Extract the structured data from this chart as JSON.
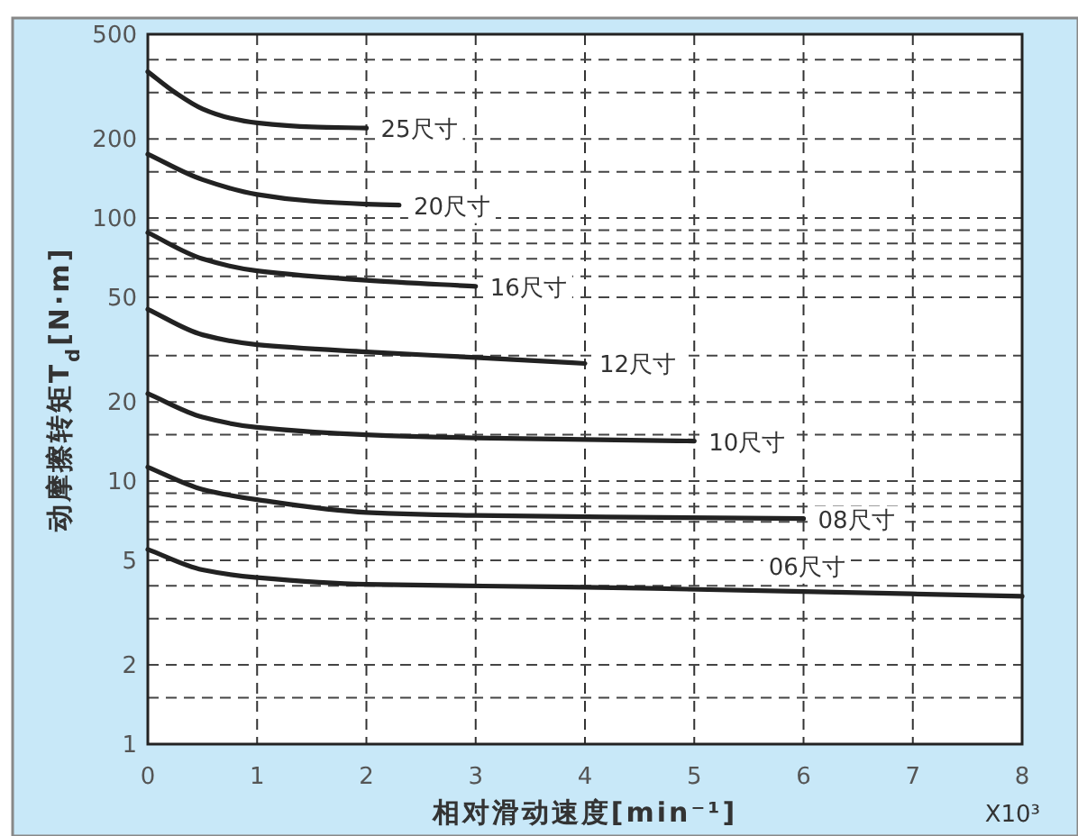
{
  "chart_data": {
    "type": "line",
    "xlabel": "相对滑动速度[min⁻¹]",
    "ylabel": "动摩擦转矩T$_{d}$[N·m]",
    "log": "y",
    "xlim": [
      0,
      8
    ],
    "xticks": [
      0,
      1,
      2,
      3,
      4,
      5,
      6,
      7,
      8
    ],
    "ylim": [
      1,
      500
    ],
    "yticks": [
      1,
      {
        "value": 1.5,
        "label": null
      },
      2,
      {
        "value": 3,
        "label": null
      },
      {
        "value": 4,
        "label": null
      },
      5,
      {
        "value": 6,
        "label": null
      },
      {
        "value": 7,
        "label": null
      },
      {
        "value": 8,
        "label": null
      },
      {
        "value": 9,
        "label": null
      },
      10,
      {
        "value": 15,
        "label": null
      },
      20,
      {
        "value": 30,
        "label": null
      },
      50,
      {
        "value": 60,
        "label": null
      },
      {
        "value": 70,
        "label": null
      },
      {
        "value": 80,
        "label": null
      },
      {
        "value": 90,
        "label": null
      },
      100,
      {
        "value": 150,
        "label": null
      },
      200,
      {
        "value": 300,
        "label": null
      },
      {
        "value": 400,
        "label": null
      },
      500
    ],
    "grid": true,
    "series": [
      {
        "name": "25尺寸",
        "color": "#222222",
        "x": [
          0,
          0.25,
          0.5,
          0.75,
          1,
          1.5,
          2
        ],
        "values": [
          360,
          300,
          260,
          240,
          230,
          222,
          220
        ]
      },
      {
        "name": "20尺寸",
        "color": "#222222",
        "x": [
          0,
          0.5,
          1,
          1.5,
          2,
          2.3
        ],
        "values": [
          175,
          140,
          123,
          116,
          113,
          112
        ]
      },
      {
        "name": "16尺寸",
        "color": "#222222",
        "x": [
          0,
          0.5,
          1,
          2,
          3
        ],
        "values": [
          88,
          70,
          63,
          58,
          55
        ]
      },
      {
        "name": "12尺寸",
        "color": "#222222",
        "x": [
          0,
          0.5,
          1,
          2,
          3,
          4
        ],
        "values": [
          45,
          36,
          33,
          31,
          29.5,
          28
        ]
      },
      {
        "name": "10尺寸",
        "color": "#222222",
        "x": [
          0,
          0.5,
          1,
          2,
          3,
          4,
          5
        ],
        "values": [
          21.5,
          17.5,
          16,
          15,
          14.6,
          14.4,
          14.2
        ]
      },
      {
        "name": "08尺寸",
        "color": "#222222",
        "x": [
          0,
          0.5,
          1,
          2,
          3,
          6
        ],
        "values": [
          11.3,
          9.3,
          8.5,
          7.6,
          7.4,
          7.2
        ]
      },
      {
        "name": "06尺寸",
        "color": "#222222",
        "x": [
          0,
          0.5,
          1,
          2,
          4,
          6,
          8
        ],
        "values": [
          5.5,
          4.6,
          4.3,
          4.05,
          3.95,
          3.8,
          3.65
        ]
      }
    ],
    "annotations": [
      "X10³"
    ]
  }
}
